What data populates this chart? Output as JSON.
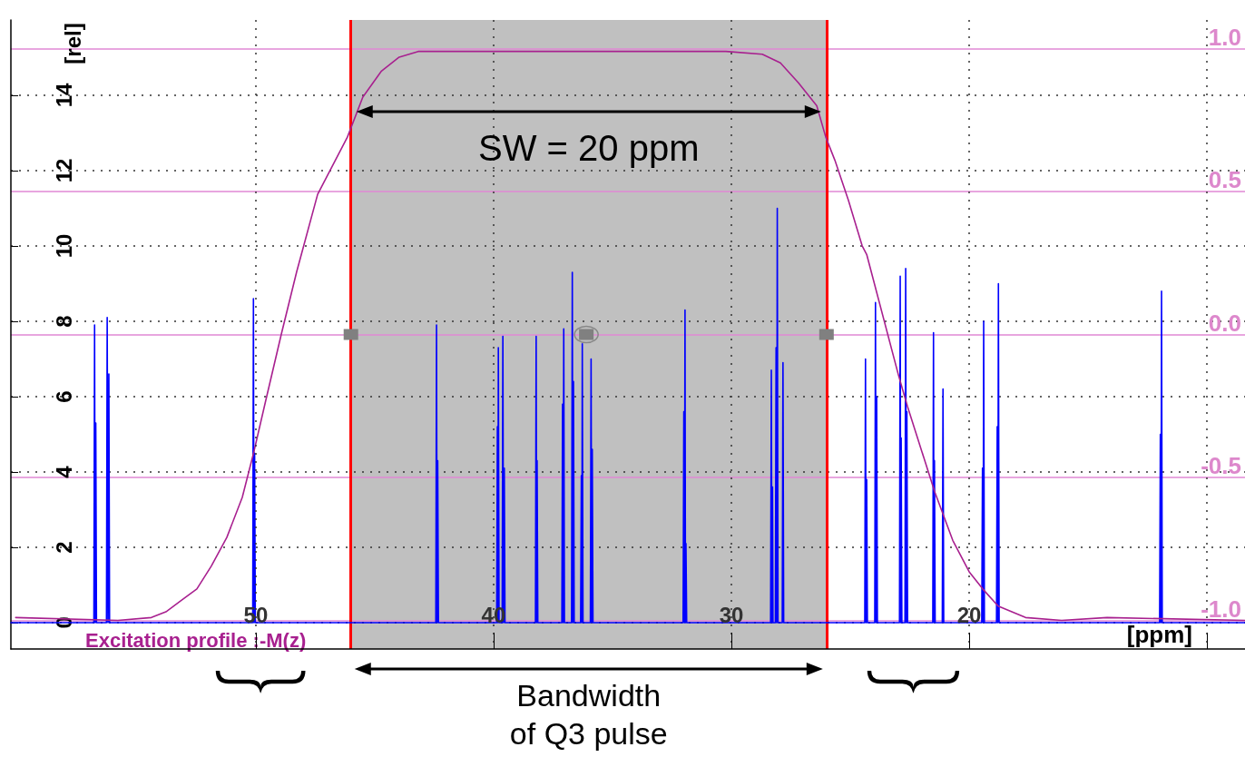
{
  "chart_data": {
    "type": "line",
    "xlabel": "[ppm]",
    "ylabel": "[rel]",
    "xlim": [
      60.3,
      8.4
    ],
    "xticks": [
      50,
      40,
      30,
      20,
      {
        "value": 10,
        "label": null
      }
    ],
    "ylim": [
      -0.7,
      16
    ],
    "yticks": [
      0,
      2,
      4,
      6,
      8,
      10,
      12,
      14
    ],
    "y2lim": [
      -1.1,
      1.1
    ],
    "y2ticks": [
      {
        "value": -1,
        "label": "-1.0"
      },
      {
        "value": -0.5,
        "label": "-0.5"
      },
      {
        "value": 0,
        "label": "0.0"
      },
      {
        "value": 0.5,
        "label": "0.5"
      },
      {
        "value": 1,
        "label": "1.0"
      }
    ],
    "grid": true,
    "legend": "bottom left",
    "marker": "none",
    "series": [
      {
        "color": "#0000ff",
        "x": [
          60.3,
          56.81,
          56.78,
          56.755,
          56.73,
          56.7,
          56.28,
          56.25,
          56.215,
          56.18,
          56.15,
          50.13,
          50.1,
          50.075,
          50.05,
          50.02,
          42.43,
          42.4,
          42.375,
          42.35,
          42.32,
          39.87,
          39.84,
          39.82,
          39.8,
          39.77,
          39.64,
          39.61,
          39.58,
          39.55,
          39.52,
          38.24,
          38.21,
          38.19,
          38.17,
          38.14,
          37.13,
          37.1,
          37.075,
          37.05,
          37.02,
          36.72,
          36.69,
          36.665,
          36.64,
          36.61,
          36.34,
          36.31,
          36.29,
          36.27,
          36.24,
          35.93,
          35.9,
          35.875,
          35.85,
          35.82,
          32.03,
          32.0,
          31.975,
          31.95,
          31.93,
          31.91,
          31.88,
          28.35,
          28.32,
          28.295,
          28.27,
          28.25,
          28.15,
          28.12,
          28.095,
          28.07,
          28.04,
          27.86,
          27.83,
          27.8,
          24.39,
          24.36,
          24.335,
          24.31,
          24.28,
          23.97,
          23.94,
          23.915,
          23.89,
          23.86,
          22.93,
          22.9,
          22.88,
          22.86,
          22.83,
          22.7,
          22.67,
          22.645,
          22.62,
          22.59,
          21.53,
          21.5,
          21.48,
          21.46,
          21.43,
          21.13,
          21.1,
          21.07,
          19.47,
          19.44,
          19.415,
          19.39,
          19.36,
          18.85,
          18.82,
          18.795,
          18.77,
          18.74,
          11.99,
          11.96,
          11.935,
          11.91,
          11.88,
          8.4
        ],
        "values": [
          0,
          0,
          7.9,
          0,
          5.3,
          0,
          0,
          8.1,
          0,
          6.6,
          0,
          0,
          8.6,
          0,
          4.5,
          0,
          0,
          7.9,
          0,
          4.3,
          0,
          0,
          5.2,
          0,
          7.3,
          0,
          0,
          7.6,
          0,
          4.1,
          0,
          0,
          7.6,
          0,
          4.3,
          0,
          0,
          5.8,
          0,
          7.8,
          0,
          0,
          9.3,
          0,
          6.4,
          0,
          0,
          3.9,
          0,
          7.4,
          0,
          0,
          7.0,
          0,
          4.6,
          0,
          0,
          5.6,
          0,
          8.3,
          0,
          2.1,
          0,
          0,
          6.7,
          0,
          3.6,
          0,
          0,
          7.3,
          0,
          11.0,
          0,
          0,
          6.9,
          0,
          0,
          7.0,
          0,
          3.8,
          0,
          0,
          8.5,
          0,
          6.0,
          0,
          0,
          9.2,
          0,
          4.9,
          0,
          0,
          9.4,
          0,
          5.6,
          0,
          0,
          7.7,
          0,
          4.3,
          0,
          0,
          6.2,
          0,
          0,
          4.1,
          0,
          8.0,
          0,
          0,
          5.2,
          0,
          9.0,
          0,
          0,
          5.0,
          0,
          8.8,
          0,
          0
        ]
      },
      {
        "name": "Excitation profile :-M(z)",
        "color": "#a8208f",
        "axis": "y2",
        "x": [
          60.1,
          55.8,
          54.39,
          53.78,
          53.13,
          52.48,
          51.87,
          51.22,
          50.57,
          50.08,
          49.58,
          48.93,
          48.28,
          47.4,
          46.15,
          45.5,
          44.73,
          43.97,
          43.17,
          41.68,
          35.95,
          30.23,
          28.7,
          27.94,
          27.18,
          26.41,
          26.03,
          25.65,
          25.08,
          24.5,
          24.31,
          22.98,
          22.6,
          21.45,
          20.69,
          20.0,
          19.43,
          18.78,
          17.63,
          16.11,
          14.2,
          8.4
        ],
        "values": [
          -0.99,
          -1.0,
          -0.99,
          -0.97,
          -0.93,
          -0.89,
          -0.81,
          -0.71,
          -0.57,
          -0.41,
          -0.23,
          0.0,
          0.22,
          0.49,
          0.69,
          0.83,
          0.92,
          0.97,
          0.99,
          0.99,
          0.99,
          0.99,
          0.98,
          0.95,
          0.88,
          0.8,
          0.69,
          0.61,
          0.47,
          0.31,
          0.28,
          -0.14,
          -0.25,
          -0.55,
          -0.72,
          -0.83,
          -0.89,
          -0.95,
          -0.99,
          -1.0,
          -0.99,
          -1.0
        ]
      }
    ],
    "ref_lines": [
      {
        "axis": "x",
        "value": 46,
        "color": "#ff0000"
      },
      {
        "axis": "x",
        "value": 26,
        "color": "#ff0000"
      }
    ],
    "bands": [
      {
        "axis": "x",
        "from": 46,
        "to": 26,
        "color": "#c0c0c0"
      }
    ],
    "annotations": [
      "SW = 20 ppm",
      "Bandwidth\nof Q3 pulse"
    ]
  }
}
